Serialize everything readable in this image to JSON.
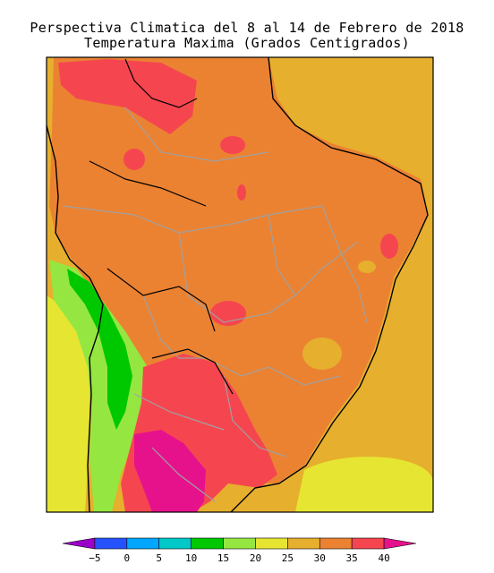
{
  "header": {
    "title": "Perspectiva Climatica del 8 al 14 de Febrero de 2018",
    "subtitle": "Temperatura Maxima (Grados Centigrados)"
  },
  "legend": {
    "ticks": [
      "−5",
      "0",
      "5",
      "10",
      "15",
      "20",
      "25",
      "30",
      "35",
      "40"
    ],
    "colors": [
      "#9b00c8",
      "#2552ff",
      "#00a6ff",
      "#00c8c8",
      "#00c800",
      "#96e641",
      "#e6e632",
      "#e6af2d",
      "#eb8232",
      "#f54650",
      "#e6128c"
    ]
  },
  "map": {
    "palette": {
      "warm_30_35": "#e6af2d",
      "hot_35_40": "#eb8232",
      "very_hot_40": "#f54650",
      "extreme": "#e6128c",
      "mild_25_30": "#e6e632",
      "cool_20_25": "#96e641",
      "cold_15_20": "#00c800",
      "boundary": "#a0a0a0",
      "coast": "#000000"
    }
  }
}
